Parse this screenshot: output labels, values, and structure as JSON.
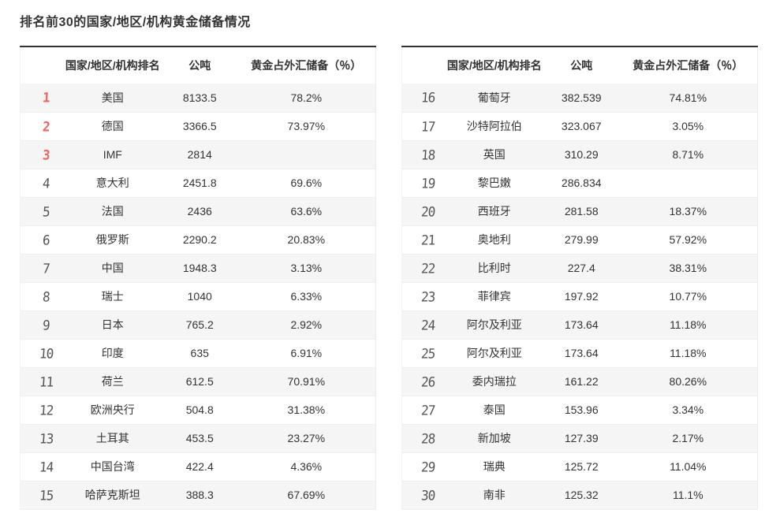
{
  "title": "排名前30的国家/地区/机构黄金储备情况",
  "headers": {
    "rank": "",
    "name": "国家/地区/机构排名",
    "tonnes": "公吨",
    "pct": "黄金占外汇储备（％）"
  },
  "colors": {
    "accent_red": "#ef6360",
    "rank_gray": "#555555",
    "header_border": "#333333",
    "zebra_row": "#f5f5f5",
    "text": "#333333"
  },
  "tables": [
    {
      "rows": [
        {
          "rank": "1",
          "name": "美国",
          "tonnes": "8133.5",
          "pct": "78.2%",
          "top": true
        },
        {
          "rank": "2",
          "name": "德国",
          "tonnes": "3366.5",
          "pct": "73.97%",
          "top": true
        },
        {
          "rank": "3",
          "name": "IMF",
          "tonnes": "2814",
          "pct": "",
          "top": true
        },
        {
          "rank": "4",
          "name": "意大利",
          "tonnes": "2451.8",
          "pct": "69.6%",
          "top": false
        },
        {
          "rank": "5",
          "name": "法国",
          "tonnes": "2436",
          "pct": "63.6%",
          "top": false
        },
        {
          "rank": "6",
          "name": "俄罗斯",
          "tonnes": "2290.2",
          "pct": "20.83%",
          "top": false
        },
        {
          "rank": "7",
          "name": "中国",
          "tonnes": "1948.3",
          "pct": "3.13%",
          "top": false
        },
        {
          "rank": "8",
          "name": "瑞士",
          "tonnes": "1040",
          "pct": "6.33%",
          "top": false
        },
        {
          "rank": "9",
          "name": "日本",
          "tonnes": "765.2",
          "pct": "2.92%",
          "top": false
        },
        {
          "rank": "10",
          "name": "印度",
          "tonnes": "635",
          "pct": "6.91%",
          "top": false
        },
        {
          "rank": "11",
          "name": "荷兰",
          "tonnes": "612.5",
          "pct": "70.91%",
          "top": false
        },
        {
          "rank": "12",
          "name": "欧洲央行",
          "tonnes": "504.8",
          "pct": "31.38%",
          "top": false
        },
        {
          "rank": "13",
          "name": "土耳其",
          "tonnes": "453.5",
          "pct": "23.27%",
          "top": false
        },
        {
          "rank": "14",
          "name": "中国台湾",
          "tonnes": "422.4",
          "pct": "4.36%",
          "top": false
        },
        {
          "rank": "15",
          "name": "哈萨克斯坦",
          "tonnes": "388.3",
          "pct": "67.69%",
          "top": false
        }
      ]
    },
    {
      "rows": [
        {
          "rank": "16",
          "name": "葡萄牙",
          "tonnes": "382.539",
          "pct": "74.81%",
          "top": false
        },
        {
          "rank": "17",
          "name": "沙特阿拉伯",
          "tonnes": "323.067",
          "pct": "3.05%",
          "top": false
        },
        {
          "rank": "18",
          "name": "英国",
          "tonnes": "310.29",
          "pct": "8.71%",
          "top": false
        },
        {
          "rank": "19",
          "name": "黎巴嫩",
          "tonnes": "286.834",
          "pct": "",
          "top": false
        },
        {
          "rank": "20",
          "name": "西班牙",
          "tonnes": "281.58",
          "pct": "18.37%",
          "top": false
        },
        {
          "rank": "21",
          "name": "奥地利",
          "tonnes": "279.99",
          "pct": "57.92%",
          "top": false
        },
        {
          "rank": "22",
          "name": "比利时",
          "tonnes": "227.4",
          "pct": "38.31%",
          "top": false
        },
        {
          "rank": "23",
          "name": "菲律宾",
          "tonnes": "197.92",
          "pct": "10.77%",
          "top": false
        },
        {
          "rank": "24",
          "name": "阿尔及利亚",
          "tonnes": "173.64",
          "pct": "11.18%",
          "top": false
        },
        {
          "rank": "25",
          "name": "阿尔及利亚",
          "tonnes": "173.64",
          "pct": "11.18%",
          "top": false
        },
        {
          "rank": "26",
          "name": "委内瑞拉",
          "tonnes": "161.22",
          "pct": "80.26%",
          "top": false
        },
        {
          "rank": "27",
          "name": "泰国",
          "tonnes": "153.96",
          "pct": "3.34%",
          "top": false
        },
        {
          "rank": "28",
          "name": "新加坡",
          "tonnes": "127.39",
          "pct": "2.17%",
          "top": false
        },
        {
          "rank": "29",
          "name": "瑞典",
          "tonnes": "125.72",
          "pct": "11.04%",
          "top": false
        },
        {
          "rank": "30",
          "name": "南非",
          "tonnes": "125.32",
          "pct": "11.1%",
          "top": false
        }
      ]
    }
  ]
}
